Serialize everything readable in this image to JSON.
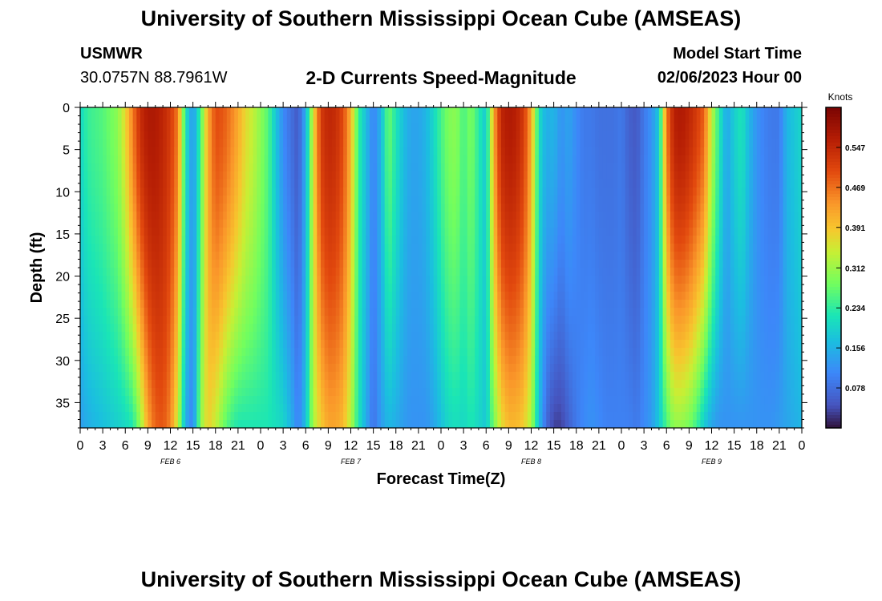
{
  "page": {
    "title": "University of Southern Mississippi Ocean Cube (AMSEAS)",
    "footer_title": "University of Southern Mississippi Ocean Cube (AMSEAS)",
    "station_id": "USMWR",
    "coordinates": "30.0757N  88.7961W",
    "model_start_label": "Model Start Time",
    "model_start_value": "02/06/2023 Hour 00"
  },
  "chart_data": {
    "type": "heatmap",
    "title": "2-D Currents Speed-Magnitude",
    "xlabel": "Forecast Time(Z)",
    "ylabel": "Depth (ft)",
    "x_range_hours": [
      0,
      96
    ],
    "y_range_ft": [
      0,
      38
    ],
    "x_tick_labels": [
      "0",
      "3",
      "6",
      "9",
      "12",
      "15",
      "18",
      "21",
      "0",
      "3",
      "6",
      "9",
      "12",
      "15",
      "18",
      "21",
      "0",
      "3",
      "6",
      "9",
      "12",
      "15",
      "18",
      "21",
      "0",
      "3",
      "6",
      "9",
      "12",
      "15",
      "18",
      "21",
      "0"
    ],
    "x_tick_hours": [
      0,
      3,
      6,
      9,
      12,
      15,
      18,
      21,
      24,
      27,
      30,
      33,
      36,
      39,
      42,
      45,
      48,
      51,
      54,
      57,
      60,
      63,
      66,
      69,
      72,
      75,
      78,
      81,
      84,
      87,
      90,
      93,
      96
    ],
    "day_labels": [
      {
        "label": "FEB 6",
        "hour": 12
      },
      {
        "label": "FEB 7",
        "hour": 36
      },
      {
        "label": "FEB 8",
        "hour": 60
      },
      {
        "label": "FEB 9",
        "hour": 84
      }
    ],
    "y_ticks": [
      0,
      5,
      10,
      15,
      20,
      25,
      30,
      35
    ],
    "colorbar": {
      "unit": "Knots",
      "min": 0.0,
      "max": 0.625,
      "tick_values": [
        0.078,
        0.156,
        0.234,
        0.312,
        0.391,
        0.469,
        0.547
      ],
      "tick_labels": [
        "0.078",
        "0.156",
        "0.234",
        "0.312",
        "0.391",
        "0.469",
        "0.547"
      ]
    },
    "speed_profile_hours": [
      0,
      1,
      2,
      3,
      4,
      5,
      6,
      7,
      8,
      9,
      10,
      11,
      12,
      13,
      14,
      15,
      16,
      17,
      18,
      19,
      20,
      21,
      22,
      23,
      24,
      25,
      26,
      27,
      28,
      29,
      30,
      31,
      32,
      33,
      34,
      35,
      36,
      37,
      38,
      39,
      40,
      41,
      42,
      43,
      44,
      45,
      46,
      47,
      48,
      49,
      50,
      51,
      52,
      53,
      54,
      55,
      56,
      57,
      58,
      59,
      60,
      61,
      62,
      63,
      64,
      65,
      66,
      67,
      68,
      69,
      70,
      71,
      72,
      73,
      74,
      75,
      76,
      77,
      78,
      79,
      80,
      81,
      82,
      83,
      84,
      85,
      86,
      87,
      88,
      89,
      90,
      91,
      92,
      93,
      94,
      95,
      96
    ],
    "speed_surface_knots": [
      0.2,
      0.24,
      0.25,
      0.26,
      0.28,
      0.3,
      0.37,
      0.46,
      0.54,
      0.57,
      0.57,
      0.55,
      0.52,
      0.46,
      0.22,
      0.12,
      0.25,
      0.42,
      0.5,
      0.49,
      0.46,
      0.42,
      0.37,
      0.34,
      0.3,
      0.26,
      0.18,
      0.11,
      0.08,
      0.05,
      0.15,
      0.36,
      0.52,
      0.55,
      0.54,
      0.5,
      0.41,
      0.24,
      0.17,
      0.1,
      0.16,
      0.28,
      0.22,
      0.17,
      0.14,
      0.14,
      0.16,
      0.2,
      0.25,
      0.29,
      0.3,
      0.25,
      0.29,
      0.23,
      0.18,
      0.42,
      0.55,
      0.57,
      0.56,
      0.52,
      0.42,
      0.21,
      0.15,
      0.16,
      0.12,
      0.14,
      0.11,
      0.09,
      0.09,
      0.08,
      0.08,
      0.08,
      0.09,
      0.06,
      0.05,
      0.09,
      0.12,
      0.18,
      0.46,
      0.56,
      0.57,
      0.55,
      0.52,
      0.48,
      0.34,
      0.23,
      0.14,
      0.19,
      0.22,
      0.16,
      0.12,
      0.1,
      0.09,
      0.09,
      0.16,
      0.18,
      0.2
    ],
    "speed_bottom_knots": [
      0.13,
      0.15,
      0.16,
      0.17,
      0.18,
      0.19,
      0.2,
      0.22,
      0.3,
      0.42,
      0.48,
      0.49,
      0.45,
      0.34,
      0.15,
      0.1,
      0.3,
      0.38,
      0.34,
      0.28,
      0.24,
      0.22,
      0.22,
      0.22,
      0.22,
      0.22,
      0.21,
      0.2,
      0.16,
      0.1,
      0.17,
      0.32,
      0.38,
      0.42,
      0.42,
      0.4,
      0.33,
      0.22,
      0.15,
      0.08,
      0.13,
      0.16,
      0.15,
      0.13,
      0.12,
      0.12,
      0.12,
      0.14,
      0.17,
      0.2,
      0.21,
      0.2,
      0.22,
      0.2,
      0.18,
      0.28,
      0.36,
      0.4,
      0.4,
      0.38,
      0.32,
      0.17,
      0.07,
      0.03,
      0.03,
      0.06,
      0.09,
      0.11,
      0.12,
      0.11,
      0.1,
      0.1,
      0.1,
      0.1,
      0.09,
      0.11,
      0.13,
      0.18,
      0.25,
      0.3,
      0.3,
      0.28,
      0.24,
      0.18,
      0.14,
      0.12,
      0.12,
      0.12,
      0.12,
      0.12,
      0.12,
      0.12,
      0.12,
      0.13,
      0.14,
      0.15,
      0.16
    ]
  }
}
